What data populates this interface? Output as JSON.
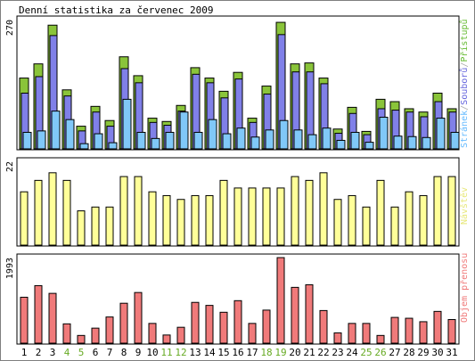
{
  "title": "Denní statistika za červenec 2009",
  "chart_data": {
    "type": "bar",
    "categories": [
      "1",
      "2",
      "3",
      "4",
      "5",
      "6",
      "7",
      "8",
      "9",
      "10",
      "11",
      "12",
      "13",
      "14",
      "15",
      "16",
      "17",
      "18",
      "19",
      "20",
      "21",
      "22",
      "23",
      "24",
      "25",
      "26",
      "27",
      "28",
      "29",
      "30",
      "31"
    ],
    "weekend_days": [
      "4",
      "5",
      "11",
      "12",
      "18",
      "19",
      "25",
      "26"
    ],
    "colors": {
      "weekday_label": "#000000",
      "weekend_label": "#66aa22",
      "pristupu": "#8ac43a",
      "souboru": "#8080e8",
      "stranek": "#80c8f8",
      "navstev": "#ffff99",
      "objem": "#f07a7a",
      "label_pristupu": "#66bb33",
      "label_souboru": "#6666dd",
      "label_stranek": "#66bbff",
      "label_navstev": "#e8e87a",
      "label_objem": "#f07a7a"
    },
    "panels": [
      {
        "name": "traffic",
        "ymax_label": "270",
        "ylim": [
          0,
          270
        ],
        "series": [
          {
            "name": "Přístupů",
            "values": [
              150,
              180,
              262,
              125,
              48,
              90,
              60,
              195,
              155,
              65,
              58,
              92,
              172,
              150,
              122,
              162,
              65,
              133,
              268,
              180,
              182,
              150,
              42,
              88,
              37,
              105,
              100,
              85,
              78,
              118,
              85
            ]
          },
          {
            "name": "Souborů",
            "values": [
              118,
              153,
              240,
              112,
              38,
              78,
              48,
              170,
              140,
              56,
              50,
              80,
              158,
              140,
              108,
              148,
              56,
              116,
              242,
              163,
              163,
              138,
              33,
              75,
              30,
              85,
              82,
              78,
              68,
              100,
              78
            ]
          },
          {
            "name": "Stránek",
            "values": [
              35,
              38,
              80,
              62,
              11,
              32,
              13,
              105,
              35,
              22,
              35,
              78,
              35,
              62,
              32,
              44,
              25,
              40,
              60,
              40,
              30,
              44,
              18,
              35,
              14,
              67,
              27,
              26,
              24,
              65,
              35
            ]
          }
        ]
      },
      {
        "name": "visits",
        "ymax_label": "22",
        "ylim": [
          0,
          22
        ],
        "series": [
          {
            "name": "Návštěv",
            "values": [
              14,
              17,
              19,
              17,
              9,
              10,
              10,
              18,
              18,
              14,
              13,
              12,
              13,
              13,
              17,
              15,
              15,
              15,
              15,
              18,
              17,
              19,
              12,
              13,
              10,
              17,
              10,
              14,
              13,
              18,
              18
            ]
          }
        ]
      },
      {
        "name": "volume",
        "ymax_label": "1993",
        "ylim": [
          0,
          1993
        ],
        "series": [
          {
            "name": "Objem přenosu",
            "values": [
              1070,
              1340,
              1160,
              450,
              180,
              350,
              610,
              930,
              1180,
              460,
              190,
              370,
              950,
              880,
              720,
              990,
              460,
              770,
              1993,
              1300,
              1360,
              760,
              240,
              460,
              460,
              180,
              600,
              580,
              500,
              740,
              550
            ]
          }
        ]
      }
    ]
  }
}
